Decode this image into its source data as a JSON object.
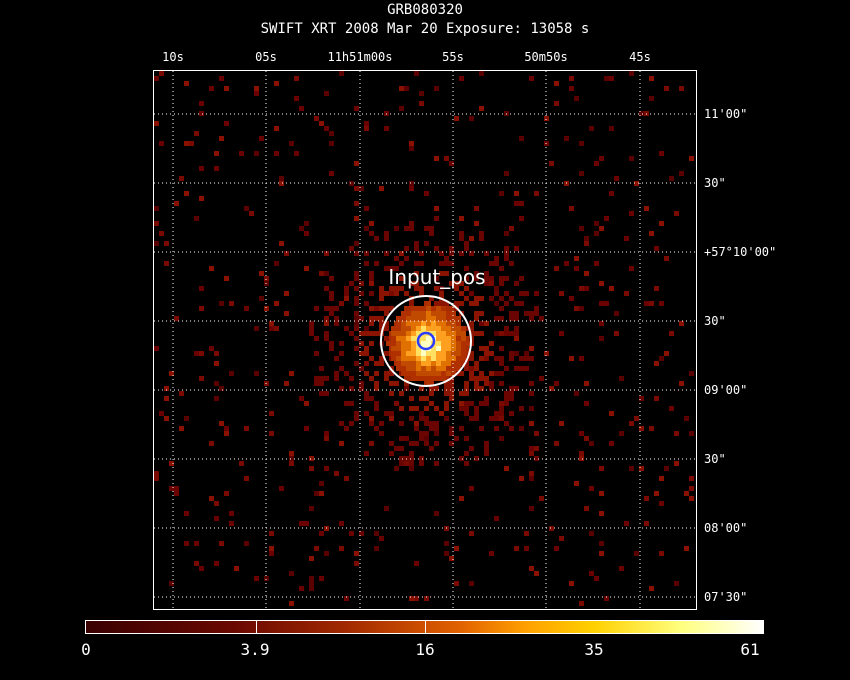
{
  "header": {
    "object": "GRB080320",
    "subtitle": "SWIFT XRT   2008 Mar 20    Exposure: 13058 s"
  },
  "ra_labels": [
    "10s",
    "05s",
    "11h51m00s",
    "55s",
    "50m50s",
    "45s"
  ],
  "dec_labels": [
    "11'00\"",
    "30\"",
    "+57°10'00\"",
    "30\"",
    "09'00\"",
    "30\"",
    "08'00\"",
    "07'30\""
  ],
  "source": {
    "label": "Input_pos"
  },
  "colorbar": {
    "labels": [
      "0",
      "3.9",
      "16",
      "35",
      "61"
    ],
    "colors": [
      "#3a0000",
      "#6a0800",
      "#a02800",
      "#e06000",
      "#ffa000",
      "#ffd000",
      "#ffff80",
      "#ffffff"
    ]
  },
  "colors": {
    "grid": "#ffffff",
    "source_circle": "#ffffff",
    "target_circle": "#2a3cff"
  }
}
